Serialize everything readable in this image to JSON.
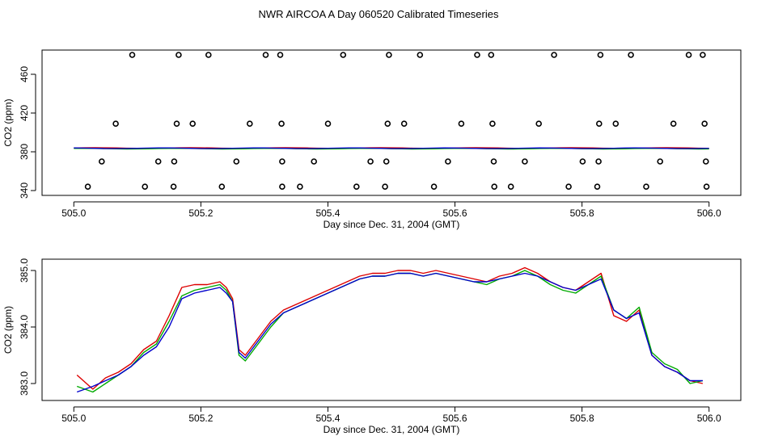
{
  "figure": {
    "title": "NWR AIRCOA A  Day 060520  Calibrated Timeseries"
  },
  "chart_data": [
    {
      "type": "scatter+line",
      "title": "",
      "xlabel": "Day since Dec. 31, 2004 (GMT)",
      "ylabel": "CO2 (ppm)",
      "xlim": [
        504.95,
        506.05
      ],
      "ylim": [
        335,
        485
      ],
      "x_ticks": [
        505.0,
        505.2,
        505.4,
        505.6,
        505.8,
        506.0
      ],
      "x_tick_labels": [
        "505.0",
        "505.2",
        "505.4",
        "505.6",
        "505.8",
        "506.0"
      ],
      "y_ticks": [
        340,
        380,
        420,
        460
      ],
      "y_tick_labels": [
        "340",
        "380",
        "420",
        "460"
      ],
      "scatter_series": {
        "name": "calibration points",
        "color": "#000000",
        "points": [
          {
            "x": 505.092,
            "y": 480
          },
          {
            "x": 505.165,
            "y": 480
          },
          {
            "x": 505.212,
            "y": 480
          },
          {
            "x": 505.302,
            "y": 480
          },
          {
            "x": 505.325,
            "y": 480
          },
          {
            "x": 505.424,
            "y": 480
          },
          {
            "x": 505.496,
            "y": 480
          },
          {
            "x": 505.545,
            "y": 480
          },
          {
            "x": 505.635,
            "y": 480
          },
          {
            "x": 505.657,
            "y": 480
          },
          {
            "x": 505.756,
            "y": 480
          },
          {
            "x": 505.829,
            "y": 480
          },
          {
            "x": 505.877,
            "y": 480
          },
          {
            "x": 505.968,
            "y": 480
          },
          {
            "x": 505.99,
            "y": 480
          },
          {
            "x": 505.066,
            "y": 409
          },
          {
            "x": 505.162,
            "y": 409
          },
          {
            "x": 505.187,
            "y": 409
          },
          {
            "x": 505.277,
            "y": 409
          },
          {
            "x": 505.327,
            "y": 409
          },
          {
            "x": 505.4,
            "y": 409
          },
          {
            "x": 505.494,
            "y": 409
          },
          {
            "x": 505.52,
            "y": 409
          },
          {
            "x": 505.61,
            "y": 409
          },
          {
            "x": 505.659,
            "y": 409
          },
          {
            "x": 505.732,
            "y": 409
          },
          {
            "x": 505.827,
            "y": 409
          },
          {
            "x": 505.853,
            "y": 409
          },
          {
            "x": 505.944,
            "y": 409
          },
          {
            "x": 505.993,
            "y": 409
          },
          {
            "x": 505.044,
            "y": 370
          },
          {
            "x": 505.133,
            "y": 370
          },
          {
            "x": 505.158,
            "y": 370
          },
          {
            "x": 505.256,
            "y": 370
          },
          {
            "x": 505.328,
            "y": 370
          },
          {
            "x": 505.378,
            "y": 370
          },
          {
            "x": 505.467,
            "y": 370
          },
          {
            "x": 505.492,
            "y": 370
          },
          {
            "x": 505.589,
            "y": 370
          },
          {
            "x": 505.661,
            "y": 370
          },
          {
            "x": 505.71,
            "y": 370
          },
          {
            "x": 505.801,
            "y": 370
          },
          {
            "x": 505.826,
            "y": 370
          },
          {
            "x": 505.923,
            "y": 370
          },
          {
            "x": 505.995,
            "y": 370
          },
          {
            "x": 505.022,
            "y": 344
          },
          {
            "x": 505.112,
            "y": 344
          },
          {
            "x": 505.157,
            "y": 344
          },
          {
            "x": 505.233,
            "y": 344
          },
          {
            "x": 505.328,
            "y": 344
          },
          {
            "x": 505.356,
            "y": 344
          },
          {
            "x": 505.445,
            "y": 344
          },
          {
            "x": 505.49,
            "y": 344
          },
          {
            "x": 505.567,
            "y": 344
          },
          {
            "x": 505.662,
            "y": 344
          },
          {
            "x": 505.688,
            "y": 344
          },
          {
            "x": 505.779,
            "y": 344
          },
          {
            "x": 505.824,
            "y": 344
          },
          {
            "x": 505.901,
            "y": 344
          },
          {
            "x": 505.996,
            "y": 344
          }
        ]
      },
      "line_series": [
        {
          "name": "red",
          "color": "#dd0000"
        },
        {
          "name": "green",
          "color": "#00aa00"
        },
        {
          "name": "blue",
          "color": "#0000cc"
        }
      ],
      "line_approx_ppm": 383.5
    },
    {
      "type": "line",
      "title": "",
      "xlabel": "Day since Dec. 31, 2004 (GMT)",
      "ylabel": "CO2 (ppm)",
      "xlim": [
        504.95,
        506.05
      ],
      "ylim": [
        382.7,
        385.2
      ],
      "x_ticks": [
        505.0,
        505.2,
        505.4,
        505.6,
        505.8,
        506.0
      ],
      "x_tick_labels": [
        "505.0",
        "505.2",
        "505.4",
        "505.6",
        "505.8",
        "506.0"
      ],
      "y_ticks": [
        383.0,
        384.0,
        385.0
      ],
      "y_tick_labels": [
        "383.0",
        "384.0",
        "385.0"
      ],
      "x": [
        505.005,
        505.03,
        505.05,
        505.07,
        505.09,
        505.11,
        505.13,
        505.15,
        505.17,
        505.19,
        505.21,
        505.23,
        505.24,
        505.25,
        505.26,
        505.27,
        505.29,
        505.31,
        505.33,
        505.35,
        505.37,
        505.39,
        505.41,
        505.43,
        505.45,
        505.47,
        505.49,
        505.51,
        505.53,
        505.55,
        505.57,
        505.59,
        505.61,
        505.63,
        505.65,
        505.67,
        505.69,
        505.71,
        505.73,
        505.75,
        505.77,
        505.79,
        505.81,
        505.83,
        505.85,
        505.87,
        505.89,
        505.91,
        505.93,
        505.95,
        505.97,
        505.99
      ],
      "series": [
        {
          "name": "red",
          "color": "#dd0000",
          "values": [
            383.15,
            382.9,
            383.1,
            383.2,
            383.35,
            383.6,
            383.75,
            384.2,
            384.7,
            384.75,
            384.75,
            384.8,
            384.7,
            384.5,
            383.6,
            383.5,
            383.8,
            384.1,
            384.3,
            384.4,
            384.5,
            384.6,
            384.7,
            384.8,
            384.9,
            384.95,
            384.95,
            385.0,
            385.0,
            384.95,
            385.0,
            384.95,
            384.9,
            384.85,
            384.8,
            384.9,
            384.95,
            385.05,
            384.95,
            384.8,
            384.7,
            384.65,
            384.8,
            384.95,
            384.2,
            384.1,
            384.3,
            383.5,
            383.3,
            383.2,
            383.05,
            383.0
          ]
        },
        {
          "name": "green",
          "color": "#00aa00",
          "values": [
            382.95,
            382.85,
            383.0,
            383.15,
            383.3,
            383.55,
            383.7,
            384.1,
            384.55,
            384.65,
            384.7,
            384.75,
            384.65,
            384.45,
            383.5,
            383.4,
            383.7,
            384.0,
            384.25,
            384.35,
            384.45,
            384.55,
            384.65,
            384.75,
            384.85,
            384.9,
            384.9,
            384.95,
            384.95,
            384.9,
            384.95,
            384.9,
            384.85,
            384.8,
            384.75,
            384.85,
            384.9,
            385.0,
            384.9,
            384.75,
            384.65,
            384.6,
            384.75,
            384.9,
            384.3,
            384.15,
            384.35,
            383.55,
            383.35,
            383.25,
            383.0,
            383.05
          ]
        },
        {
          "name": "blue",
          "color": "#0000cc",
          "values": [
            382.85,
            382.95,
            383.05,
            383.15,
            383.3,
            383.5,
            383.65,
            384.0,
            384.5,
            384.6,
            384.65,
            384.7,
            384.6,
            384.45,
            383.55,
            383.45,
            383.75,
            384.05,
            384.25,
            384.35,
            384.45,
            384.55,
            384.65,
            384.75,
            384.85,
            384.9,
            384.9,
            384.95,
            384.95,
            384.9,
            384.95,
            384.9,
            384.85,
            384.8,
            384.8,
            384.85,
            384.9,
            384.95,
            384.9,
            384.8,
            384.7,
            384.65,
            384.75,
            384.85,
            384.3,
            384.15,
            384.25,
            383.5,
            383.3,
            383.2,
            383.05,
            383.05
          ]
        }
      ]
    }
  ]
}
